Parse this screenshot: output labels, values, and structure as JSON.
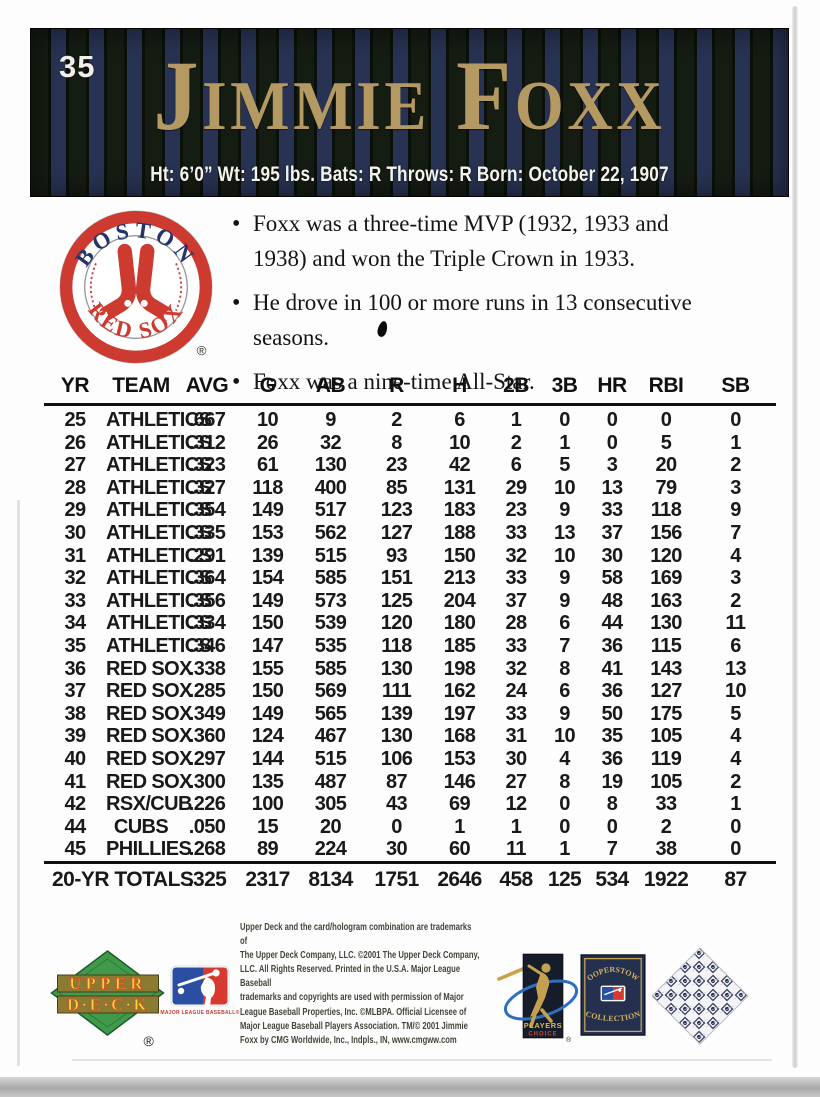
{
  "card": {
    "number": "35",
    "player_name": "Jimmie Foxx",
    "bio_line": "Ht: 6’0” Wt: 195 lbs. Bats: R Throws: R Born: October 22, 1907"
  },
  "team_logo": {
    "top_text": "BOSTON",
    "bottom_text": "RED SOX",
    "registered_mark": "®"
  },
  "highlights": [
    "Foxx was a three-time MVP (1932, 1933 and 1938) and won the Triple Crown in 1933.",
    "He drove in 100 or more runs in 13 consecutive seasons.",
    "Foxx was a nine-time All-Star."
  ],
  "stats": {
    "columns": [
      "YR",
      "TEAM",
      "AVG",
      "G",
      "AB",
      "R",
      "H",
      "2B",
      "3B",
      "HR",
      "RBI",
      "SB"
    ],
    "rows": [
      [
        "25",
        "ATHLETICS",
        ".667",
        "10",
        "9",
        "2",
        "6",
        "1",
        "0",
        "0",
        "0",
        "0"
      ],
      [
        "26",
        "ATHLETICS",
        ".312",
        "26",
        "32",
        "8",
        "10",
        "2",
        "1",
        "0",
        "5",
        "1"
      ],
      [
        "27",
        "ATHLETICS",
        ".323",
        "61",
        "130",
        "23",
        "42",
        "6",
        "5",
        "3",
        "20",
        "2"
      ],
      [
        "28",
        "ATHLETICS",
        ".327",
        "118",
        "400",
        "85",
        "131",
        "29",
        "10",
        "13",
        "79",
        "3"
      ],
      [
        "29",
        "ATHLETICS",
        ".354",
        "149",
        "517",
        "123",
        "183",
        "23",
        "9",
        "33",
        "118",
        "9"
      ],
      [
        "30",
        "ATHLETICS",
        ".335",
        "153",
        "562",
        "127",
        "188",
        "33",
        "13",
        "37",
        "156",
        "7"
      ],
      [
        "31",
        "ATHLETICS",
        ".291",
        "139",
        "515",
        "93",
        "150",
        "32",
        "10",
        "30",
        "120",
        "4"
      ],
      [
        "32",
        "ATHLETICS",
        ".364",
        "154",
        "585",
        "151",
        "213",
        "33",
        "9",
        "58",
        "169",
        "3"
      ],
      [
        "33",
        "ATHLETICS",
        ".356",
        "149",
        "573",
        "125",
        "204",
        "37",
        "9",
        "48",
        "163",
        "2"
      ],
      [
        "34",
        "ATHLETICS",
        ".334",
        "150",
        "539",
        "120",
        "180",
        "28",
        "6",
        "44",
        "130",
        "11"
      ],
      [
        "35",
        "ATHLETICS",
        ".346",
        "147",
        "535",
        "118",
        "185",
        "33",
        "7",
        "36",
        "115",
        "6"
      ],
      [
        "36",
        "RED SOX",
        ".338",
        "155",
        "585",
        "130",
        "198",
        "32",
        "8",
        "41",
        "143",
        "13"
      ],
      [
        "37",
        "RED SOX",
        ".285",
        "150",
        "569",
        "111",
        "162",
        "24",
        "6",
        "36",
        "127",
        "10"
      ],
      [
        "38",
        "RED SOX",
        ".349",
        "149",
        "565",
        "139",
        "197",
        "33",
        "9",
        "50",
        "175",
        "5"
      ],
      [
        "39",
        "RED SOX",
        ".360",
        "124",
        "467",
        "130",
        "168",
        "31",
        "10",
        "35",
        "105",
        "4"
      ],
      [
        "40",
        "RED SOX",
        ".297",
        "144",
        "515",
        "106",
        "153",
        "30",
        "4",
        "36",
        "119",
        "4"
      ],
      [
        "41",
        "RED SOX",
        ".300",
        "135",
        "487",
        "87",
        "146",
        "27",
        "8",
        "19",
        "105",
        "2"
      ],
      [
        "42",
        "RSX/CUB",
        ".226",
        "100",
        "305",
        "43",
        "69",
        "12",
        "0",
        "8",
        "33",
        "1"
      ],
      [
        "44",
        "CUBS",
        ".050",
        "15",
        "20",
        "0",
        "1",
        "1",
        "0",
        "0",
        "2",
        "0"
      ],
      [
        "45",
        "PHILLIES",
        ".268",
        "89",
        "224",
        "30",
        "60",
        "11",
        "1",
        "7",
        "38",
        "0"
      ]
    ],
    "totals": {
      "label": "20-YR TOTALS",
      "values": [
        ".325",
        "2317",
        "8134",
        "1751",
        "2646",
        "458",
        "125",
        "534",
        "1922",
        "87"
      ]
    }
  },
  "footer": {
    "fine_print": "Upper Deck and the card/hologram combination are trademarks of\nThe Upper Deck Company, LLC. ©2001 The Upper Deck Company,\nLLC. All Rights Reserved. Printed in the U.S.A. Major League Baseball\ntrademarks and copyrights are used with permission of Major\nLeague Baseball Properties, Inc. ©MLBPA. Official Licensee of\nMajor League Baseball Players Association. TM/© 2001 Jimmie\nFoxx by CMG Worldwide, Inc., Indpls., IN, www.cmgww.com",
    "upper_deck_logo": {
      "line1": "UPPER",
      "line2": "D·E·C·K",
      "registered_mark": "®"
    },
    "mlb_logo_caption": "MAJOR LEAGUE BASEBALL®",
    "players_choice": {
      "line1": "PLAYERS",
      "line2": "CHOICE",
      "registered_mark": "®"
    },
    "cooperstown": {
      "top_text": "COOPERSTOWN",
      "bottom_text": "COLLECTION"
    }
  },
  "colors": {
    "gold_name": "#b49a62",
    "pinstripe_navy": "#283353",
    "pinstripe_green": "#151c12",
    "red_sox_red": "#cc3a30",
    "red_sox_navy": "#23356b"
  }
}
